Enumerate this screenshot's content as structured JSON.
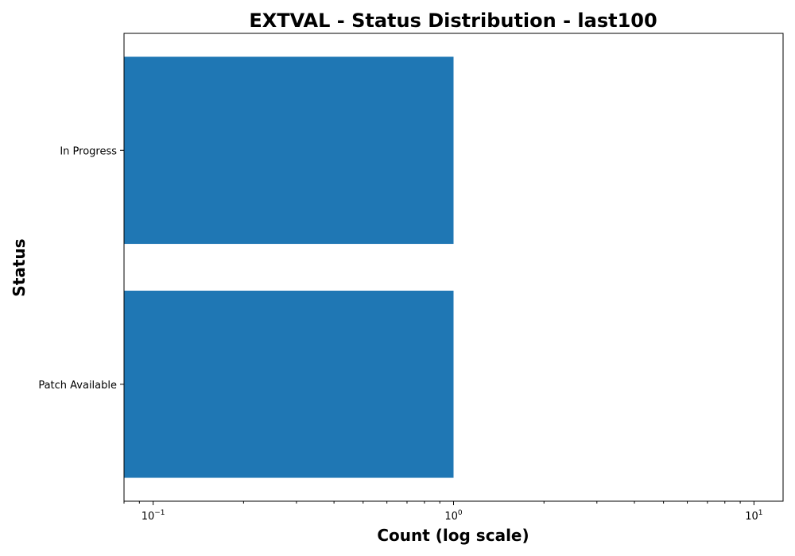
{
  "chart_data": {
    "type": "bar",
    "orientation": "horizontal",
    "title": "EXTVAL - Status Distribution - last100",
    "xlabel": "Count (log scale)",
    "ylabel": "Status",
    "xscale": "log",
    "xlim": [
      0.08,
      12.5
    ],
    "categories": [
      "In Progress",
      "Patch Available"
    ],
    "values": [
      1,
      1
    ],
    "x_ticks": [
      {
        "value": 0.1,
        "base": "10",
        "exp": "−1"
      },
      {
        "value": 1,
        "base": "10",
        "exp": "0"
      },
      {
        "value": 10,
        "base": "10",
        "exp": "1"
      }
    ],
    "bar_color": "#1f77b4",
    "grid": false,
    "legend": "none"
  }
}
